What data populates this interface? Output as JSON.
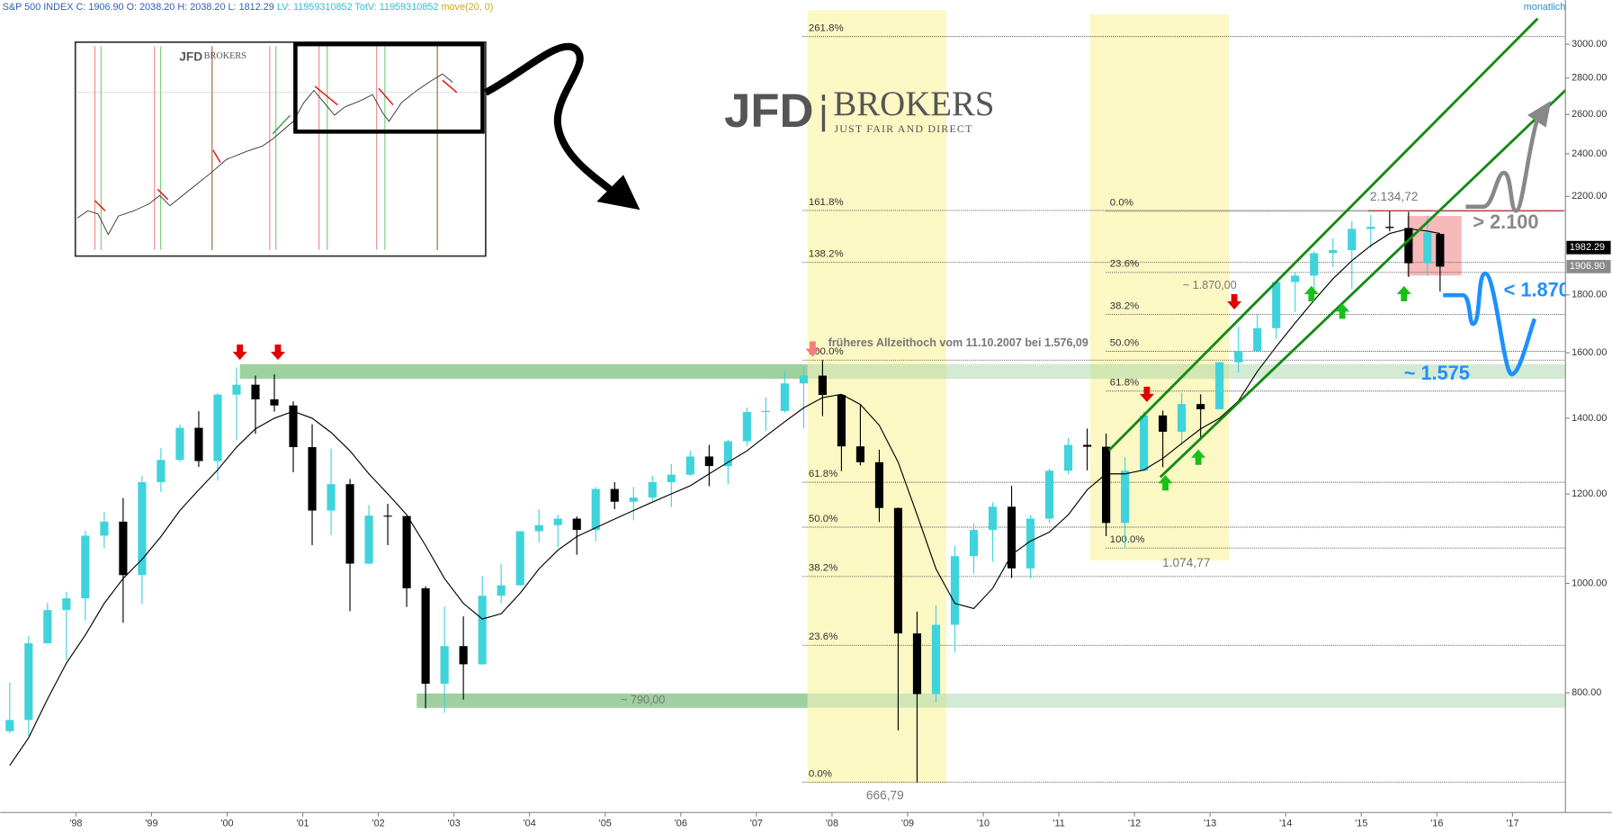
{
  "chart_data": {
    "type": "candlestick",
    "header": [
      "S&P 500 INDEX C: 1906.90 O: 2038.20 H: 2038.20 L: 1812.29",
      "LV: 11959310852 TotV: 11959310852",
      "move(20, 0)"
    ],
    "timeframe": "monatlich",
    "logo": {
      "name": "JFD",
      "brand": "BROKERS",
      "tagline": "JUST FAIR AND DIRECT"
    },
    "x": [
      1997.125,
      1997.375,
      1997.625,
      1997.875,
      1998.125,
      1998.375,
      1998.625,
      1998.875,
      1999.125,
      1999.375,
      1999.625,
      1999.875,
      2000.125,
      2000.375,
      2000.625,
      2000.875,
      2001.125,
      2001.375,
      2001.625,
      2001.875,
      2002.125,
      2002.375,
      2002.625,
      2002.875,
      2003.125,
      2003.375,
      2003.625,
      2003.875,
      2004.125,
      2004.375,
      2004.625,
      2004.875,
      2005.125,
      2005.375,
      2005.625,
      2005.875,
      2006.125,
      2006.375,
      2006.625,
      2006.875,
      2007.125,
      2007.375,
      2007.625,
      2007.875,
      2008.125,
      2008.375,
      2008.625,
      2008.875,
      2009.125,
      2009.375,
      2009.625,
      2009.875,
      2010.125,
      2010.375,
      2010.625,
      2010.875,
      2011.125,
      2011.375,
      2011.625,
      2011.875,
      2012.125,
      2012.375,
      2012.625,
      2012.875,
      2013.125,
      2013.375,
      2013.625,
      2013.875,
      2014.125,
      2014.375,
      2014.625,
      2014.875,
      2015.125,
      2015.375,
      2015.625,
      2015.875,
      2016.042
    ],
    "open": [
      740,
      757,
      885,
      947,
      970,
      1102,
      1134,
      1017,
      1229,
      1286,
      1373,
      1283,
      1469,
      1499,
      1455,
      1437,
      1320,
      1160,
      1224,
      1041,
      1148,
      1147,
      990,
      815,
      880,
      848,
      975,
      996,
      1112,
      1126,
      1141,
      1115,
      1212,
      1181,
      1191,
      1229,
      1248,
      1295,
      1270,
      1336,
      1418,
      1421,
      1503,
      1527,
      1468,
      1322,
      1280,
      1166,
      903,
      798,
      919,
      1057,
      1115,
      1169,
      1031,
      1141,
      1258,
      1326,
      1321,
      1131,
      1258,
      1408,
      1362,
      1441,
      1426,
      1569,
      1606,
      1682,
      1848,
      1872,
      1960,
      1972,
      2059,
      2068,
      2063,
      1920,
      2038.2
    ],
    "high": [
      817,
      898,
      961,
      983,
      1113,
      1157,
      1190,
      1244,
      1317,
      1382,
      1420,
      1474,
      1553,
      1527,
      1531,
      1449,
      1383,
      1316,
      1237,
      1173,
      1176,
      1147,
      994,
      954,
      935,
      1015,
      1040,
      1112,
      1163,
      1150,
      1146,
      1217,
      1229,
      1217,
      1246,
      1275,
      1310,
      1326,
      1340,
      1431,
      1461,
      1540,
      1555,
      1576.09,
      1471,
      1440,
      1313,
      1167,
      944,
      956,
      1080,
      1130,
      1180,
      1220,
      1149,
      1263,
      1345,
      1371,
      1357,
      1293,
      1420,
      1422,
      1475,
      1470,
      1570,
      1687,
      1729,
      1849,
      1884,
      1968,
      2019,
      2093,
      2119,
      2134.72,
      2132,
      2116,
      2038.2
    ],
    "low": [
      737,
      733,
      885,
      855,
      927,
      1074,
      923,
      959,
      1205,
      1281,
      1268,
      1233,
      1339,
      1356,
      1419,
      1254,
      1081,
      1103,
      945,
      1040,
      1081,
      953,
      775,
      768,
      789,
      847,
      960,
      996,
      1087,
      1076,
      1060,
      1090,
      1163,
      1137,
      1183,
      1168,
      1245,
      1219,
      1224,
      1323,
      1364,
      1416,
      1371,
      1406,
      1257,
      1272,
      1133,
      741,
      666.79,
      784,
      869,
      1020,
      1045,
      1011,
      1010,
      1131,
      1249,
      1259,
      1101,
      1074.77,
      1258,
      1267,
      1326,
      1343,
      1426,
      1536,
      1604,
      1646,
      1738,
      1814,
      1905,
      1821,
      1981,
      2049,
      1867,
      1872,
      1812.29
    ],
    "close": [
      757,
      885,
      947,
      970,
      1102,
      1134,
      1017,
      1229,
      1286,
      1373,
      1283,
      1469,
      1499,
      1455,
      1437,
      1320,
      1160,
      1224,
      1041,
      1148,
      1147,
      990,
      815,
      880,
      848,
      975,
      996,
      1112,
      1126,
      1141,
      1115,
      1212,
      1181,
      1191,
      1229,
      1248,
      1295,
      1270,
      1336,
      1418,
      1421,
      1503,
      1527,
      1468,
      1322,
      1280,
      1166,
      903,
      798,
      919,
      1057,
      1115,
      1169,
      1031,
      1141,
      1258,
      1326,
      1321,
      1131,
      1258,
      1408,
      1362,
      1441,
      1426,
      1569,
      1606,
      1682,
      1848,
      1872,
      1960,
      1972,
      2059,
      2068,
      2063,
      1920,
      2044,
      1906.9
    ],
    "up_color": "#3fd3dc",
    "down_color": "#000000",
    "moving_average": {
      "color": "#000000",
      "values": [
        690,
        730,
        790,
        850,
        900,
        960,
        1010,
        1050,
        1100,
        1160,
        1210,
        1260,
        1320,
        1370,
        1400,
        1420,
        1400,
        1360,
        1310,
        1250,
        1200,
        1150,
        1080,
        1010,
        960,
        930,
        940,
        980,
        1030,
        1070,
        1100,
        1120,
        1140,
        1160,
        1180,
        1200,
        1220,
        1250,
        1280,
        1310,
        1350,
        1390,
        1430,
        1460,
        1470,
        1440,
        1380,
        1280,
        1150,
        1030,
        960,
        950,
        990,
        1060,
        1090,
        1110,
        1150,
        1210,
        1250,
        1250,
        1260,
        1290,
        1330,
        1370,
        1400,
        1450,
        1540,
        1620,
        1700,
        1780,
        1860,
        1930,
        1990,
        2040,
        2060,
        2050,
        2040
      ]
    },
    "xlim": [
      1997,
      2017.7
    ],
    "xticks": [
      {
        "value": 1998,
        "label": "'98"
      },
      {
        "value": 1999,
        "label": "'99"
      },
      {
        "value": 2000,
        "label": "'00"
      },
      {
        "value": 2001,
        "label": "'01"
      },
      {
        "value": 2002,
        "label": "'02"
      },
      {
        "value": 2003,
        "label": "'03"
      },
      {
        "value": 2004,
        "label": "'04"
      },
      {
        "value": 2005,
        "label": "'05"
      },
      {
        "value": 2006,
        "label": "'06"
      },
      {
        "value": 2007,
        "label": "'07"
      },
      {
        "value": 2008,
        "label": "'08"
      },
      {
        "value": 2009,
        "label": "'09"
      },
      {
        "value": 2010,
        "label": "'10"
      },
      {
        "value": 2011,
        "label": "'11"
      },
      {
        "value": 2012,
        "label": "'12"
      },
      {
        "value": 2013,
        "label": "'13"
      },
      {
        "value": 2014,
        "label": "'14"
      },
      {
        "value": 2015,
        "label": "'15"
      },
      {
        "value": 2016,
        "label": "'16"
      },
      {
        "value": 2017,
        "label": "'17"
      }
    ],
    "ylim": [
      627,
      3283
    ],
    "log_y": true,
    "yticks": [
      {
        "value": 800,
        "label": "800.00"
      },
      {
        "value": 1000,
        "label": "1000.00"
      },
      {
        "value": 1200,
        "label": "1200.00"
      },
      {
        "value": 1400,
        "label": "1400.00"
      },
      {
        "value": 1600,
        "label": "1600.00"
      },
      {
        "value": 1800,
        "label": "1800.00"
      },
      {
        "value": 2200,
        "label": "2200.00"
      },
      {
        "value": 2400,
        "label": "2400.00"
      },
      {
        "value": 2600,
        "label": "2600.00"
      },
      {
        "value": 2800,
        "label": "2800.00"
      },
      {
        "value": 3000,
        "label": "3000.00"
      }
    ],
    "last_prices": [
      {
        "value": 1982.29,
        "label": "1982.29",
        "color": "#000000"
      },
      {
        "value": 1906.9,
        "label": "1906.90",
        "color": "#8a8a8a"
      }
    ],
    "fib_left": [
      {
        "label": "261.8%",
        "value": 3047.3
      },
      {
        "label": "161.8%",
        "value": 2138.0
      },
      {
        "label": "138.2%",
        "value": 1923.4
      },
      {
        "label": "100.0%",
        "value": 1576.09
      },
      {
        "label": "61.8%",
        "value": 1228.7
      },
      {
        "label": "50.0%",
        "value": 1121.4
      },
      {
        "label": "38.2%",
        "value": 1014.1
      },
      {
        "label": "23.6%",
        "value": 881.4
      },
      {
        "label": "0.0%",
        "value": 666.79
      }
    ],
    "fib_right": [
      {
        "label": "0.0%",
        "value": 2134.72
      },
      {
        "label": "23.6%",
        "value": 1884.6
      },
      {
        "label": "38.2%",
        "value": 1729.8
      },
      {
        "label": "50.0%",
        "value": 1604.7
      },
      {
        "label": "61.8%",
        "value": 1479.7
      },
      {
        "label": "100.0%",
        "value": 1074.77
      }
    ],
    "zone_color": "#9fd09f",
    "zones": [
      {
        "range": [
          1517,
          1563
        ]
      },
      {
        "range": [
          776,
          799
        ],
        "label": "~ 790,00"
      }
    ],
    "annotations": [
      "früheres Allzeithoch vom 11.10.2007 bei 1.576,09",
      "2.134,72",
      "~ 1.870,00",
      "1.074,77",
      "666,79",
      "> 2.100",
      "< 1.870",
      "~ 1.575"
    ]
  }
}
